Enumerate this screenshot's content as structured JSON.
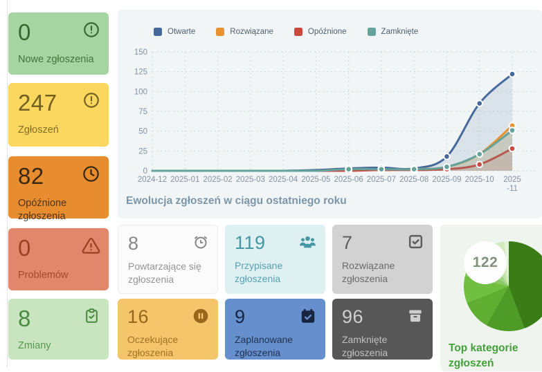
{
  "cards": {
    "left": [
      {
        "value": "0",
        "label": "Nowe zgłoszenia",
        "icon": "alert-circle",
        "bg": "#a5d6a1",
        "fg": "#35682f"
      },
      {
        "value": "247",
        "label": "Zgłoszeń",
        "icon": "alert-circle",
        "bg": "#fbd75f",
        "fg": "#71601f"
      },
      {
        "value": "82",
        "label": "Opóźnione zgłoszenia",
        "icon": "clock",
        "bg": "#e78c2f",
        "fg": "#3a280f"
      },
      {
        "value": "0",
        "label": "Problemów",
        "icon": "alert-triangle",
        "bg": "#e2876b",
        "fg": "#9c3f22"
      },
      {
        "value": "8",
        "label": "Zmiany",
        "icon": "clipboard-check",
        "bg": "#c8e5c0",
        "fg": "#4c8a41"
      }
    ],
    "middle": [
      {
        "value": "8",
        "label": "Powtarzające się zgłoszenia",
        "icon": "alarm",
        "bg": "#fbfbfb",
        "fg": "#878787",
        "border": "#ececec"
      },
      {
        "value": "119",
        "label": "Przypisane zgłoszenia",
        "icon": "users",
        "bg": "#def0f2",
        "fg": "#4696a5"
      },
      {
        "value": "7",
        "label": "Rozwiązane zgłoszenia",
        "icon": "square-check",
        "bg": "#d2d2d2",
        "fg": "#5d5d5d"
      },
      {
        "value": "16",
        "label": "Oczekujące zgłoszenia",
        "icon": "pause-circle",
        "bg": "#f5c56c",
        "fg": "#97661a"
      },
      {
        "value": "9",
        "label": "Zaplanowane zgłoszenia",
        "icon": "calendar-check",
        "bg": "#6590cd",
        "fg": "#18253f"
      },
      {
        "value": "96",
        "label": "Zamknięte zgłoszenia",
        "icon": "archive",
        "bg": "#575757",
        "fg": "#cfcfcf"
      }
    ]
  },
  "chart": {
    "title": "Ewolucja zgłoszeń w ciągu ostatniego roku",
    "legend": [
      {
        "label": "Otwarte",
        "color": "#46699c"
      },
      {
        "label": "Rozwiązane",
        "color": "#e8912d"
      },
      {
        "label": "Opóźnione",
        "color": "#c9493f"
      },
      {
        "label": "Zamknięte",
        "color": "#63a39c"
      }
    ],
    "chart_data": {
      "type": "line",
      "categories": [
        "2024-12",
        "2025-01",
        "2025-02",
        "2025-03",
        "2025-04",
        "2025-05",
        "2025-06",
        "2025-07",
        "2025-08",
        "2025-09",
        "2025-10",
        "2025-11"
      ],
      "x_tick_labels": [
        "2024-12",
        "2025-01",
        "2025-02",
        "2025-03",
        "2025-04",
        "2025-05",
        "2025-06",
        "2025-07",
        "2025-08",
        "2025-09",
        "2025-10",
        "2025\n-11"
      ],
      "series": [
        {
          "name": "Otwarte",
          "color": "#46699c",
          "fill_opacity": 0.13,
          "values": [
            0,
            0,
            0,
            0,
            0,
            1,
            3,
            4,
            3,
            18,
            85,
            122
          ]
        },
        {
          "name": "Rozwiązane",
          "color": "#e8912d",
          "fill_opacity": 0.18,
          "values": [
            0,
            0,
            0,
            0,
            0,
            0,
            1,
            1,
            2,
            5,
            21,
            57
          ]
        },
        {
          "name": "Opóźnione",
          "color": "#c9493f",
          "fill_opacity": 0.15,
          "values": [
            0,
            0,
            0,
            0,
            0,
            0,
            0,
            1,
            1,
            2,
            8,
            28
          ]
        },
        {
          "name": "Zamknięte",
          "color": "#63a39c",
          "fill_opacity": 0.18,
          "values": [
            0,
            0,
            0,
            0,
            0,
            0,
            2,
            2,
            2,
            5,
            21,
            51
          ]
        }
      ],
      "ylim": [
        0,
        150
      ],
      "yticks": [
        0,
        25,
        50,
        75,
        100,
        125,
        150
      ],
      "grid": "dotted",
      "legend_position": "top",
      "dots_from_index": 6
    }
  },
  "donut": {
    "total": "122",
    "label": "Top kategorie zgłoszeń",
    "chart_data": {
      "type": "pie",
      "title": "Top kategorie zgłoszeń",
      "total": 122,
      "values": [
        54,
        17,
        13,
        12,
        8,
        7,
        5,
        4,
        2
      ],
      "colors": [
        "#3b7c17",
        "#4f9b28",
        "#5fae31",
        "#70bf41",
        "#8cc968",
        "#a6d587",
        "#bfe2a5",
        "#d3eabf",
        "#e4f3d8"
      ]
    }
  }
}
